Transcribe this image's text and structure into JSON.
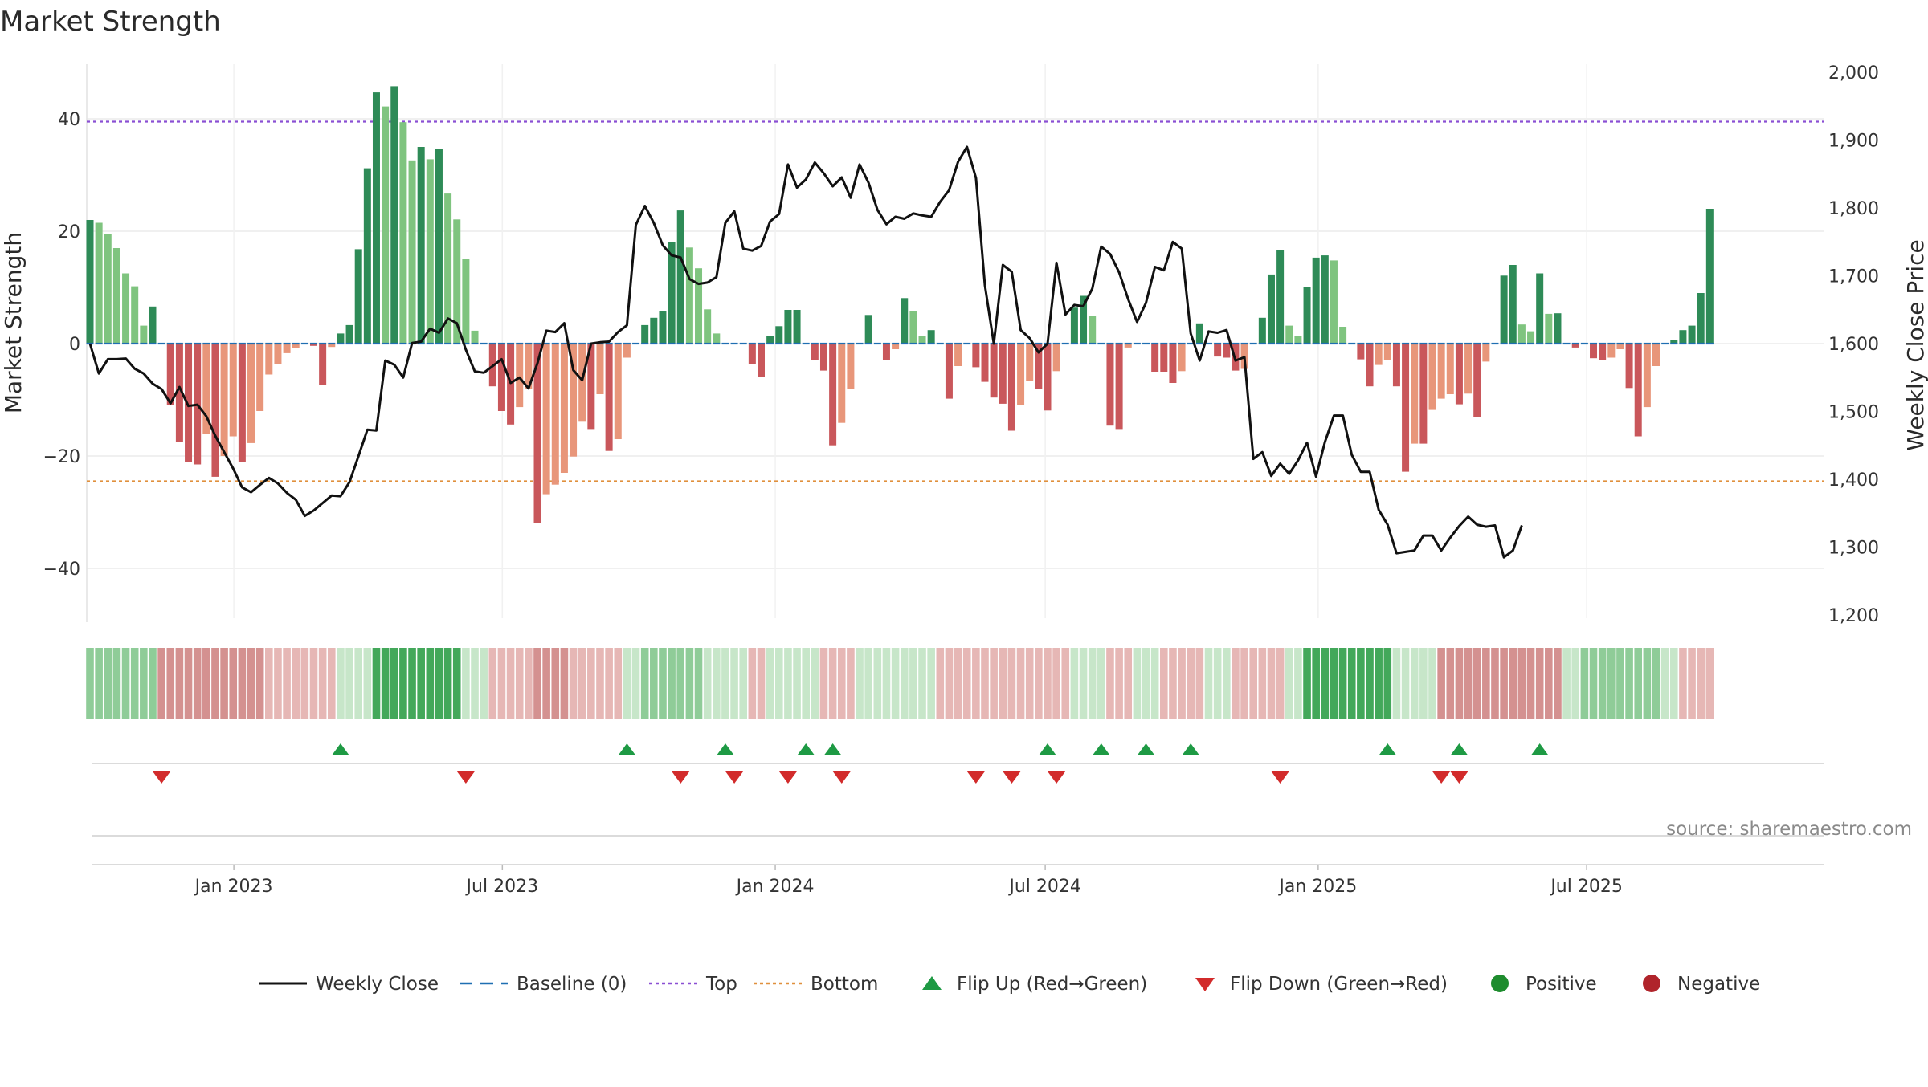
{
  "chart_data": {
    "type": "bar",
    "title": "Market Strength",
    "ylabel_left": "Market Strength",
    "ylabel_right": "Weekly Close Price",
    "source": "source: sharemaestro.com",
    "x_start": "2022-09-26",
    "x_end": "2025-09-22",
    "x_ticks": [
      {
        "label": "Jan 2023",
        "date": "2023-01-01"
      },
      {
        "label": "Jul 2023",
        "date": "2023-07-01"
      },
      {
        "label": "Jan 2024",
        "date": "2024-01-01"
      },
      {
        "label": "Jul 2024",
        "date": "2024-07-01"
      },
      {
        "label": "Jan 2025",
        "date": "2025-01-01"
      },
      {
        "label": "Jul 2025",
        "date": "2025-07-01"
      }
    ],
    "y_left": {
      "min": -49,
      "max": 50,
      "ticks": [
        40,
        20,
        0,
        -20,
        -40
      ],
      "tick_labels": [
        "40",
        "20",
        "0",
        "−20",
        "−40"
      ]
    },
    "y_right": {
      "min": 1200,
      "max": 2000,
      "ticks": [
        2000,
        1900,
        1800,
        1700,
        1600,
        1500,
        1400,
        1300,
        1200
      ],
      "tick_labels": [
        "2,000",
        "1,900",
        "1,800",
        "1,700",
        "1,600",
        "1,500",
        "1,400",
        "1,300",
        "1,200"
      ]
    },
    "top_line": 39.5,
    "bottom_line": -24.5,
    "strength": [
      22,
      21.5,
      19.5,
      17,
      12.5,
      10.2,
      3.2,
      6.6,
      0,
      -11,
      -17.5,
      -21,
      -21.5,
      -16,
      -23.7,
      -20,
      -16.5,
      -21,
      -17.7,
      -12,
      -5.5,
      -3.6,
      -1.7,
      -0.8,
      0,
      -0.4,
      -7.3,
      -0.6,
      1.8,
      3.3,
      16.8,
      31.2,
      44.7,
      42.2,
      45.8,
      39.4,
      32.6,
      35,
      32.8,
      34.6,
      26.7,
      22.1,
      15.1,
      2.3,
      0,
      -7.6,
      -12,
      -14.4,
      -11.3,
      -8,
      -31.9,
      -26.8,
      -25.1,
      -23,
      -20.1,
      -13.9,
      -15.2,
      -9,
      -19.1,
      -17,
      -2.5,
      0,
      3.3,
      4.6,
      5.8,
      18.1,
      23.7,
      17.1,
      13.4,
      6.1,
      1.8,
      0,
      0,
      0,
      -3.6,
      -5.9,
      1.3,
      3.1,
      6,
      6,
      0,
      -3,
      -4.8,
      -18.1,
      -14.1,
      -8,
      0,
      5.1,
      0,
      -2.9,
      -1,
      8.1,
      5.8,
      1.4,
      2.4,
      0,
      -9.8,
      -4,
      0,
      -4.2,
      -6.8,
      -9.6,
      -10.7,
      -15.5,
      -11,
      -6.7,
      -8,
      -11.9,
      -4.9,
      0,
      6.4,
      8.5,
      5,
      0,
      -14.6,
      -15.2,
      -0.7,
      0,
      0,
      -5,
      -5,
      -7,
      -4.9,
      0,
      3.6,
      0,
      -2.3,
      -2.5,
      -4.8,
      -4.5,
      0,
      4.6,
      12.3,
      16.7,
      3.2,
      1.4,
      10,
      15.3,
      15.7,
      14.8,
      3,
      0,
      -2.8,
      -7.6,
      -3.8,
      -2.9,
      -7.6,
      -22.8,
      -17.8,
      -17.8,
      -11.8,
      -9.8,
      -9,
      -10.8,
      -8.9,
      -13.1,
      -3.2,
      0,
      12.1,
      14,
      3.4,
      2.2,
      12.5,
      5.3,
      5.4,
      0,
      -0.7,
      0,
      -2.6,
      -2.9,
      -2.5,
      -1,
      -7.9,
      -16.5,
      -11.3,
      -4,
      0,
      0.6,
      2.4,
      3.2,
      9,
      24
    ],
    "price": [
      1600,
      1556,
      1577,
      1577,
      1578,
      1563,
      1556,
      1541,
      1533,
      1512,
      1536,
      1508,
      1510,
      1493,
      1464,
      1440,
      1416,
      1388,
      1381,
      1392,
      1402,
      1394,
      1380,
      1370,
      1346,
      1354,
      1365,
      1376,
      1375,
      1396,
      1434,
      1473,
      1472,
      1575,
      1569,
      1550,
      1601,
      1603,
      1622,
      1616,
      1637,
      1630,
      1591,
      1559,
      1557,
      1567,
      1577,
      1542,
      1550,
      1534,
      1571,
      1619,
      1617,
      1630,
      1561,
      1546,
      1600,
      1602,
      1603,
      1617,
      1627,
      1775,
      1803,
      1778,
      1745,
      1730,
      1727,
      1695,
      1688,
      1690,
      1698,
      1778,
      1795,
      1740,
      1737,
      1744,
      1780,
      1791,
      1864,
      1830,
      1842,
      1867,
      1851,
      1832,
      1845,
      1815,
      1864,
      1837,
      1797,
      1776,
      1787,
      1784,
      1792,
      1789,
      1787,
      1809,
      1826,
      1868,
      1890,
      1844,
      1686,
      1600,
      1716,
      1706,
      1620,
      1608,
      1587,
      1600,
      1719,
      1643,
      1657,
      1655,
      1681,
      1743,
      1732,
      1705,
      1666,
      1632,
      1660,
      1713,
      1708,
      1750,
      1740,
      1615,
      1575,
      1618,
      1616,
      1620,
      1575,
      1580,
      1430,
      1440,
      1405,
      1423,
      1408,
      1428,
      1454,
      1404,
      1455,
      1494,
      1494,
      1436,
      1411,
      1411,
      1355,
      1333,
      1291,
      1293,
      1295,
      1317,
      1317,
      1295,
      1314,
      1331,
      1345,
      1333,
      1330,
      1332,
      1285,
      1295,
      1332
    ],
    "regime": [
      1,
      1,
      1,
      1,
      1,
      1,
      1,
      1,
      2,
      2,
      2,
      2,
      2,
      2,
      2,
      2,
      2,
      2,
      2,
      2,
      3,
      3,
      3,
      3,
      3,
      3,
      3,
      3,
      0,
      0,
      0,
      0,
      4,
      4,
      4,
      4,
      4,
      4,
      4,
      4,
      4,
      4,
      0,
      0,
      0,
      3,
      3,
      3,
      3,
      3,
      2,
      2,
      2,
      2,
      3,
      3,
      3,
      3,
      3,
      3,
      0,
      0,
      1,
      1,
      1,
      1,
      1,
      1,
      1,
      0,
      0,
      0,
      0,
      0,
      3,
      3,
      0,
      0,
      0,
      0,
      0,
      0,
      3,
      3,
      3,
      3,
      0,
      0,
      0,
      0,
      0,
      0,
      0,
      0,
      0,
      3,
      3,
      3,
      3,
      3,
      3,
      3,
      3,
      3,
      3,
      3,
      3,
      3,
      3,
      3,
      0,
      0,
      0,
      0,
      3,
      3,
      3,
      0,
      0,
      0,
      3,
      3,
      3,
      3,
      3,
      0,
      0,
      0,
      3,
      3,
      3,
      3,
      3,
      3,
      0,
      0,
      4,
      4,
      4,
      4,
      4,
      4,
      4,
      4,
      4,
      4,
      0,
      0,
      0,
      0,
      0,
      2,
      2,
      2,
      2,
      2,
      2,
      2,
      2,
      2,
      2,
      2,
      2,
      2,
      2,
      0,
      0,
      1,
      1,
      1,
      1,
      1,
      1,
      1,
      1,
      1,
      0,
      0,
      3,
      3,
      3,
      3,
      3,
      2,
      2,
      2,
      0,
      0,
      0,
      0,
      0,
      4
    ],
    "flip_up_idx": [
      28,
      60,
      71,
      80,
      83,
      107,
      113,
      118,
      123,
      145,
      153,
      162
    ],
    "flip_down_idx": [
      8,
      42,
      66,
      72,
      78,
      84,
      99,
      103,
      108,
      133,
      151,
      153
    ],
    "colors": {
      "green_dark": "#2e8b57",
      "green_light": "#7fc47f",
      "red_dark": "#c9575b",
      "red_light": "#e8967a",
      "price_line": "#111111",
      "baseline": "#1f6fb2",
      "top": "#8a4fd3",
      "bottom": "#e0903d",
      "flip_up": "#1e9a44",
      "flip_down": "#d22b2b",
      "positive": "#1e8c2e",
      "negative": "#b0242b"
    },
    "legend": [
      {
        "label": "Weekly Close",
        "kind": "line"
      },
      {
        "label": "Baseline (0)",
        "kind": "dash"
      },
      {
        "label": "Top",
        "kind": "dot-purple"
      },
      {
        "label": "Bottom",
        "kind": "dot-orange"
      },
      {
        "label": "Flip Up (Red→Green)",
        "kind": "tri-up"
      },
      {
        "label": "Flip Down (Green→Red)",
        "kind": "tri-down"
      },
      {
        "label": "Positive",
        "kind": "dot-green"
      },
      {
        "label": "Negative",
        "kind": "dot-red"
      }
    ]
  }
}
